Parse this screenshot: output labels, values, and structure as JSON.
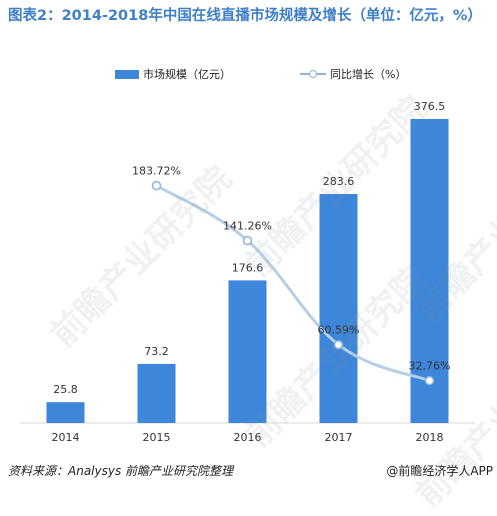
{
  "title": "图表2：2014-2018年中国在线直播市场规模及增长（单位：亿元，%）",
  "footer": {
    "source": "资料来源：Analysys  前瞻产业研究院整理",
    "brand": "@前瞻经济学人APP"
  },
  "watermark": "前瞻产业研究院",
  "colors": {
    "bar": "#3d86d9",
    "line": "#b6cfe6",
    "point_stroke": "#8fb3d8"
  },
  "chart_data": {
    "type": "bar",
    "categories": [
      "2014",
      "2015",
      "2016",
      "2017",
      "2018"
    ],
    "series": [
      {
        "name": "市场规模（亿元）",
        "type": "bar",
        "values": [
          25.8,
          73.2,
          176.6,
          283.6,
          376.5
        ],
        "labels": [
          "25.8",
          "73.2",
          "176.6",
          "283.6",
          "376.5"
        ]
      },
      {
        "name": "同比增长（%）",
        "type": "line",
        "smooth": true,
        "x": [
          "2015",
          "2016",
          "2017",
          "2018"
        ],
        "values": [
          183.72,
          141.26,
          60.59,
          32.76
        ],
        "labels": [
          "183.72%",
          "141.26%",
          "60.59%",
          "32.76%"
        ]
      }
    ],
    "ylim": [
      0,
      400
    ],
    "y2lim": [
      0,
      250
    ],
    "legend_position": "top-center",
    "grid": false
  }
}
